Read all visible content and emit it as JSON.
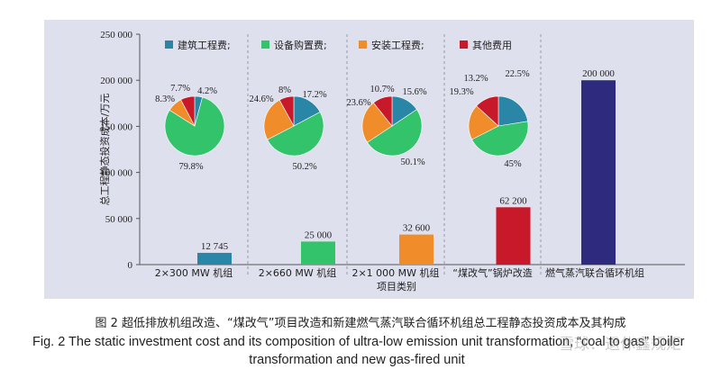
{
  "figure": {
    "caption_cn": "图 2  超低排放机组改造、“煤改气”项目改造和新建燃气蒸汽联合循环机组总工程静态投资成本及其构成",
    "caption_en_line1": "Fig. 2    The static investment cost and its composition of ultra-low emission unit transformation, “coal to gas” boiler",
    "caption_en_line2": "transformation and new gas-fired unit",
    "watermark": "雪球：退休鑫规矩"
  },
  "chart_data": {
    "type": "bar",
    "xlabel": "项目类别",
    "ylabel": "总工程静态投资成本/万元",
    "ylim": [
      0,
      250000
    ],
    "yticks": [
      0,
      50000,
      100000,
      150000,
      200000,
      250000
    ],
    "ytick_labels": [
      "0",
      "50 000",
      "100 000",
      "150 000",
      "200 000",
      "250 000"
    ],
    "grid": false,
    "legend_position": "top",
    "categories": [
      "2×300 MW 机组",
      "2×660 MW 机组",
      "2×1 000 MW 机组",
      "“煤改气”锅炉改造",
      "燃气蒸汽联合循环机组"
    ],
    "values": [
      12745,
      25000,
      32600,
      62200,
      200000
    ],
    "value_labels": [
      "12 745",
      "25 000",
      "32 600",
      "62 200",
      "200 000"
    ],
    "bar_colors": [
      "#2a86a6",
      "#33c36a",
      "#f08c2a",
      "#c8192b",
      "#2e2a7e"
    ],
    "legend": [
      {
        "name": "建筑工程费;",
        "color": "#2a86a6"
      },
      {
        "name": "设备购置费;",
        "color": "#33c36a"
      },
      {
        "name": "安装工程费;",
        "color": "#f08c2a"
      },
      {
        "name": "其他费用",
        "color": "#c8192b"
      }
    ],
    "pies": [
      {
        "category": "2×300 MW 机组",
        "slices": [
          {
            "name": "建筑工程费",
            "value": 4.2,
            "label": "4.2%"
          },
          {
            "name": "设备购置费",
            "value": 79.8,
            "label": "79.8%"
          },
          {
            "name": "安装工程费",
            "value": 8.3,
            "label": "8.3%"
          },
          {
            "name": "其他费用",
            "value": 7.7,
            "label": "7.7%"
          }
        ]
      },
      {
        "category": "2×660 MW 机组",
        "slices": [
          {
            "name": "建筑工程费",
            "value": 17.2,
            "label": "17.2%"
          },
          {
            "name": "设备购置费",
            "value": 50.2,
            "label": "50.2%"
          },
          {
            "name": "安装工程费",
            "value": 24.6,
            "label": "24.6%"
          },
          {
            "name": "其他费用",
            "value": 8,
            "label": "8%"
          }
        ]
      },
      {
        "category": "2×1 000 MW 机组",
        "slices": [
          {
            "name": "建筑工程费",
            "value": 15.6,
            "label": "15.6%"
          },
          {
            "name": "设备购置费",
            "value": 50.1,
            "label": "50.1%"
          },
          {
            "name": "安装工程费",
            "value": 23.6,
            "label": "23.6%"
          },
          {
            "name": "其他费用",
            "value": 10.7,
            "label": "10.7%"
          }
        ]
      },
      {
        "category": "“煤改气”锅炉改造",
        "slices": [
          {
            "name": "建筑工程费",
            "value": 22.5,
            "label": "22.5%"
          },
          {
            "name": "设备购置费",
            "value": 45,
            "label": "45%"
          },
          {
            "name": "安装工程费",
            "value": 19.3,
            "label": "19.3%"
          },
          {
            "name": "其他费用",
            "value": 13.2,
            "label": "13.2%"
          }
        ]
      }
    ]
  }
}
